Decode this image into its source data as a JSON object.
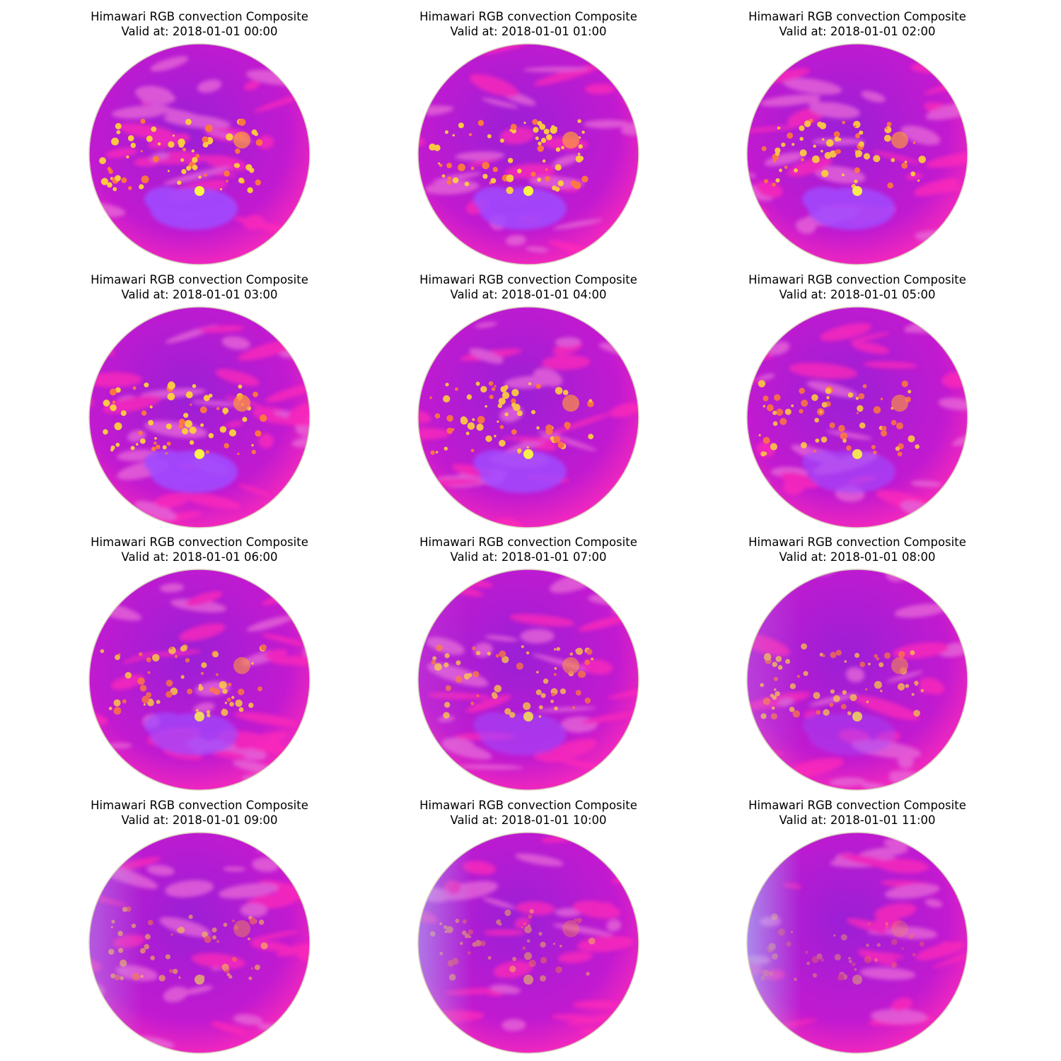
{
  "figure": {
    "panels": [
      {
        "title": "Himawari RGB convection Composite",
        "subtitle": "Valid at: 2018-01-01 00:00",
        "features": {
          "convection_level": 0.95,
          "dust_level": 0.9,
          "terminator": 0.0
        }
      },
      {
        "title": "Himawari RGB convection Composite",
        "subtitle": "Valid at: 2018-01-01 01:00",
        "features": {
          "convection_level": 0.95,
          "dust_level": 0.85,
          "terminator": 0.0
        }
      },
      {
        "title": "Himawari RGB convection Composite",
        "subtitle": "Valid at: 2018-01-01 02:00",
        "features": {
          "convection_level": 0.9,
          "dust_level": 0.8,
          "terminator": 0.0
        }
      },
      {
        "title": "Himawari RGB convection Composite",
        "subtitle": "Valid at: 2018-01-01 03:00",
        "features": {
          "convection_level": 0.95,
          "dust_level": 0.9,
          "terminator": 0.0
        }
      },
      {
        "title": "Himawari RGB convection Composite",
        "subtitle": "Valid at: 2018-01-01 04:00",
        "features": {
          "convection_level": 0.9,
          "dust_level": 0.8,
          "terminator": 0.0
        }
      },
      {
        "title": "Himawari RGB convection Composite",
        "subtitle": "Valid at: 2018-01-01 05:00",
        "features": {
          "convection_level": 0.85,
          "dust_level": 0.5,
          "terminator": 0.0
        }
      },
      {
        "title": "Himawari RGB convection Composite",
        "subtitle": "Valid at: 2018-01-01 06:00",
        "features": {
          "convection_level": 0.8,
          "dust_level": 0.6,
          "terminator": 0.0
        }
      },
      {
        "title": "Himawari RGB convection Composite",
        "subtitle": "Valid at: 2018-01-01 07:00",
        "features": {
          "convection_level": 0.75,
          "dust_level": 0.35,
          "terminator": 0.1
        }
      },
      {
        "title": "Himawari RGB convection Composite",
        "subtitle": "Valid at: 2018-01-01 08:00",
        "features": {
          "convection_level": 0.7,
          "dust_level": 0.1,
          "terminator": 0.2
        }
      },
      {
        "title": "Himawari RGB convection Composite",
        "subtitle": "Valid at: 2018-01-01 09:00",
        "features": {
          "convection_level": 0.55,
          "dust_level": 0.0,
          "terminator": 0.35
        }
      },
      {
        "title": "Himawari RGB convection Composite",
        "subtitle": "Valid at: 2018-01-01 10:00",
        "features": {
          "convection_level": 0.45,
          "dust_level": 0.0,
          "terminator": 0.5
        }
      },
      {
        "title": "Himawari RGB convection Composite",
        "subtitle": "Valid at: 2018-01-01 11:00",
        "features": {
          "convection_level": 0.35,
          "dust_level": 0.0,
          "terminator": 0.6
        }
      }
    ],
    "colors": {
      "background": "#ffffff",
      "globe_base": "#c21ad0",
      "globe_deep": "#9b1fd6",
      "high_cloud": "#ff2bb8",
      "convection": "#ffd23a",
      "convection_core": "#ffff3a",
      "dust": "#a04bff",
      "limb": "#d9d0c0",
      "terminator": "#9ad8ff"
    }
  }
}
